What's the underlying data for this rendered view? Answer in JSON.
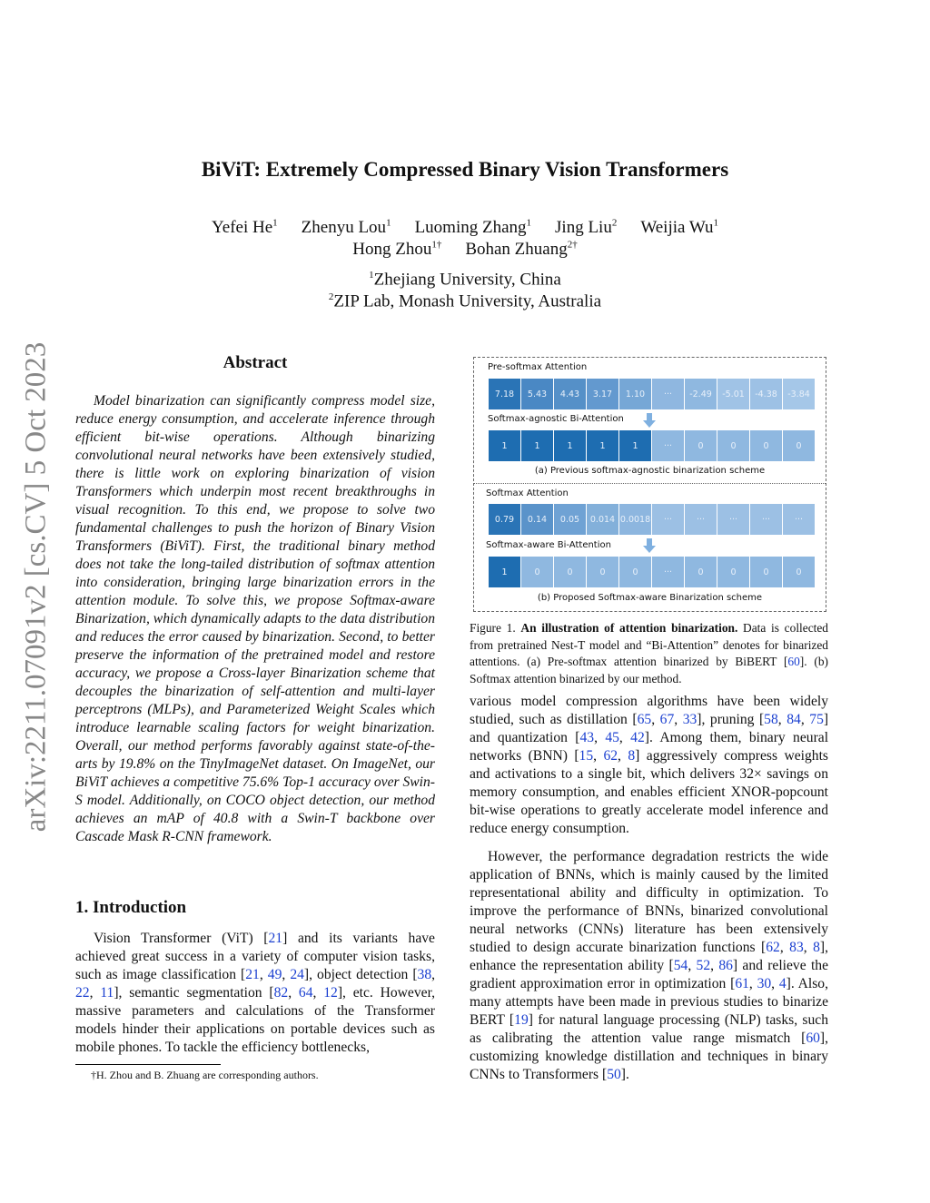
{
  "arxiv_id": "arXiv:2211.07091v2  [cs.CV]  5 Oct 2023",
  "title": "BiViT: Extremely Compressed Binary Vision Transformers",
  "authors_line1": [
    {
      "name": "Yefei He",
      "sup": "1"
    },
    {
      "name": "Zhenyu Lou",
      "sup": "1"
    },
    {
      "name": "Luoming Zhang",
      "sup": "1"
    },
    {
      "name": "Jing Liu",
      "sup": "2"
    },
    {
      "name": "Weijia Wu",
      "sup": "1"
    }
  ],
  "authors_line2": [
    {
      "name": "Hong Zhou",
      "sup": "1†"
    },
    {
      "name": "Bohan Zhuang",
      "sup": "2†"
    }
  ],
  "affiliations": [
    {
      "sup": "1",
      "text": "Zhejiang University, China"
    },
    {
      "sup": "2",
      "text": "ZIP Lab, Monash University, Australia"
    }
  ],
  "abstract_heading": "Abstract",
  "abstract": "Model binarization can significantly compress model size, reduce energy consumption, and accelerate inference through efficient bit-wise operations. Although binarizing convolutional neural networks have been extensively studied, there is little work on exploring binarization of vision Transformers which underpin most recent breakthroughs in visual recognition. To this end, we propose to solve two fundamental challenges to push the horizon of Binary Vision Transformers (BiViT). First, the traditional binary method does not take the long-tailed distribution of softmax attention into consideration, bringing large binarization errors in the attention module. To solve this, we propose Softmax-aware Binarization, which dynamically adapts to the data distribution and reduces the error caused by binarization. Second, to better preserve the information of the pretrained model and restore accuracy, we propose a Cross-layer Binarization scheme that decouples the binarization of self-attention and multi-layer perceptrons (MLPs), and Parameterized Weight Scales which introduce learnable scaling factors for weight binarization. Overall, our method performs favorably against state-of-the-arts by 19.8% on the TinyImageNet dataset. On ImageNet, our BiViT achieves a competitive 75.6% Top-1 accuracy over Swin-S model. Additionally, on COCO object detection, our method achieves an mAP of 40.8 with a Swin-T backbone over Cascade Mask R-CNN framework.",
  "intro_heading": "1. Introduction",
  "intro": "Vision Transformer (ViT) [21] and its variants have achieved great success in a variety of computer vision tasks, such as image classification [21, 49, 24], object detection [38, 22, 11], semantic segmentation [82, 64, 12], etc. However, massive parameters and calculations of the Transformer models hinder their applications on portable devices such as mobile phones. To tackle the efficiency bottlenecks,",
  "footnote": "†H. Zhou and B. Zhuang are corresponding authors.",
  "figure": {
    "a_top_label": "Pre-softmax Attention",
    "a_top_cells": [
      "7.18",
      "5.43",
      "4.43",
      "3.17",
      "1.10",
      "···",
      "-2.49",
      "-5.01",
      "-4.38",
      "-3.84"
    ],
    "a_top_colors": [
      "#2a74b6",
      "#4a88c4",
      "#5590c8",
      "#6399cf",
      "#76a7d6",
      "#8fb7e0",
      "#8fb8e0",
      "#a0c3e6",
      "#9dc1e5",
      "#a5c7e8"
    ],
    "a_bottom_label": "Softmax-agnostic Bi-Attention",
    "a_bottom_cells": [
      "1",
      "1",
      "1",
      "1",
      "1",
      "···",
      "0",
      "0",
      "0",
      "0"
    ],
    "a_bottom_colors": [
      "#1e6db1",
      "#1e6db1",
      "#1e6db1",
      "#1e6db1",
      "#1e6db1",
      "#8fb8e0",
      "#8fb8e0",
      "#8fb8e0",
      "#8fb8e0",
      "#8fb8e0"
    ],
    "a_caption": "(a) Previous softmax-agnostic binarization scheme",
    "b_top_label": "Softmax Attention",
    "b_top_cells": [
      "0.79",
      "0.14",
      "0.05",
      "0.014",
      "0.0018",
      "···",
      "···",
      "···",
      "···",
      "···"
    ],
    "b_top_colors": [
      "#2a74b6",
      "#5a93ca",
      "#6fa2d4",
      "#83b0da",
      "#8db6df",
      "#9cc0e4",
      "#9cc0e4",
      "#9cc0e4",
      "#9cc0e4",
      "#9cc0e4"
    ],
    "b_bottom_label": "Softmax-aware Bi-Attention",
    "b_bottom_cells": [
      "1",
      "0",
      "0",
      "0",
      "0",
      "···",
      "0",
      "0",
      "0",
      "0"
    ],
    "b_bottom_colors": [
      "#1e6db1",
      "#8fb8e0",
      "#8fb8e0",
      "#8fb8e0",
      "#8fb8e0",
      "#8fb8e0",
      "#8fb8e0",
      "#8fb8e0",
      "#8fb8e0",
      "#8fb8e0"
    ],
    "b_caption": "(b) Proposed Softmax-aware Binarization scheme"
  },
  "caption": {
    "label": "Figure 1.",
    "bold": "An illustration of attention binarization.",
    "text": " Data is collected from pretrained Nest-T model and “Bi-Attention” denotes for binarized attentions.  (a) Pre-softmax attention binarized by BiBERT [60]. (b) Softmax attention binarized by our method."
  },
  "right_paragraphs": [
    "various model compression algorithms have been widely studied, such as distillation [65, 67, 33], pruning [58, 84, 75] and quantization [43, 45, 42]. Among them, binary neural networks (BNN) [15, 62, 8] aggressively compress weights and activations to a single bit, which delivers 32× savings on memory consumption, and enables efficient XNOR-popcount bit-wise operations to greatly accelerate model inference and reduce energy consumption.",
    "However, the performance degradation restricts the wide application of BNNs, which is mainly caused by the limited representational ability and difficulty in optimization. To improve the performance of BNNs, binarized convolutional neural networks (CNNs) literature has been extensively studied to design accurate binarization functions [62, 83, 8], enhance the representation ability [54, 52, 86] and relieve the gradient approximation error in optimization [61, 30, 4]. Also, many attempts have been made in previous studies to binarize BERT [19] for natural language processing (NLP) tasks, such as calibrating the attention value range mismatch [60], customizing knowledge distillation and techniques in binary CNNs to Transformers [50]."
  ],
  "link_color": "#1a3fd0"
}
